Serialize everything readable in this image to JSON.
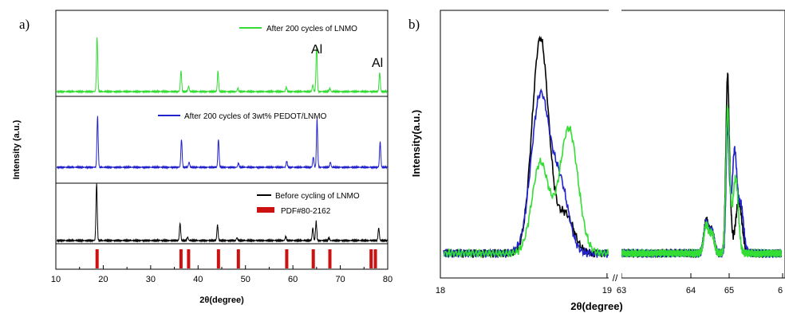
{
  "colors": {
    "lnmo": "#33dd33",
    "pedot": "#2222cc",
    "before": "#000000",
    "pdf": "#cc1111"
  },
  "chart_data": [
    {
      "type": "line",
      "panel_label": "a)",
      "xlabel": "2θ(degree)",
      "ylabel": "Intensity (a.u.)",
      "xlim": [
        10,
        80
      ],
      "xticks": [
        "10",
        "20",
        "30",
        "40",
        "50",
        "60",
        "70",
        "80"
      ],
      "series": [
        {
          "name": "After 200 cycles of LNMO",
          "color": "#33dd33",
          "peaks": [
            [
              18.7,
              1.0
            ],
            [
              36.4,
              0.38
            ],
            [
              38.0,
              0.1
            ],
            [
              44.2,
              0.38
            ],
            [
              48.4,
              0.06
            ],
            [
              58.6,
              0.08
            ],
            [
              64.2,
              0.12
            ],
            [
              65.0,
              0.85
            ],
            [
              67.8,
              0.06
            ],
            [
              78.3,
              0.35
            ]
          ]
        },
        {
          "name": "After 200 cycles of 3wt% PEDOT/LNMO",
          "color": "#2222cc",
          "peaks": [
            [
              18.8,
              1.0
            ],
            [
              36.5,
              0.55
            ],
            [
              38.1,
              0.1
            ],
            [
              44.3,
              0.55
            ],
            [
              48.5,
              0.08
            ],
            [
              58.7,
              0.12
            ],
            [
              64.3,
              0.2
            ],
            [
              65.1,
              0.95
            ],
            [
              67.9,
              0.1
            ],
            [
              78.4,
              0.5
            ]
          ]
        },
        {
          "name": "Before cycling of LNMO",
          "color": "#000000",
          "peaks": [
            [
              18.6,
              1.0
            ],
            [
              36.2,
              0.3
            ],
            [
              37.8,
              0.06
            ],
            [
              44.1,
              0.28
            ],
            [
              48.2,
              0.05
            ],
            [
              58.5,
              0.07
            ],
            [
              64.2,
              0.22
            ],
            [
              64.9,
              0.33
            ],
            [
              67.6,
              0.05
            ],
            [
              78.1,
              0.22
            ]
          ]
        }
      ],
      "reference": {
        "name": "PDF#80-2162",
        "color": "#cc1111",
        "positions": [
          18.7,
          36.4,
          38.0,
          44.3,
          48.5,
          58.7,
          64.3,
          67.8,
          76.5,
          77.4
        ]
      },
      "annotations": [
        "Al",
        "Al"
      ]
    },
    {
      "type": "line",
      "panel_label": "b)",
      "xlabel": "2θ(degree)",
      "ylabel": "Intensity(a.u.)",
      "xticks": [
        "18",
        "19",
        "63",
        "64",
        "65",
        "6"
      ],
      "axis_break": "//",
      "series": [
        {
          "name": "black",
          "color": "#000000",
          "peaks": [
            [
              18.6,
              1.0,
              0.05
            ],
            [
              18.75,
              0.18,
              0.05
            ],
            [
              64.4,
              0.15,
              0.06
            ],
            [
              64.55,
              0.1,
              0.06
            ],
            [
              64.96,
              0.83,
              0.045
            ],
            [
              65.18,
              0.24,
              0.06
            ]
          ]
        },
        {
          "name": "blue",
          "color": "#2222cc",
          "peaks": [
            [
              18.6,
              0.73,
              0.055
            ],
            [
              18.72,
              0.3,
              0.05
            ],
            [
              64.4,
              0.14,
              0.06
            ],
            [
              64.55,
              0.1,
              0.06
            ],
            [
              64.96,
              0.6,
              0.04
            ],
            [
              65.1,
              0.47,
              0.045
            ],
            [
              65.22,
              0.22,
              0.05
            ]
          ]
        },
        {
          "name": "green",
          "color": "#33dd33",
          "peaks": [
            [
              18.6,
              0.42,
              0.05
            ],
            [
              18.77,
              0.58,
              0.055
            ],
            [
              64.4,
              0.13,
              0.06
            ],
            [
              64.55,
              0.09,
              0.06
            ],
            [
              64.96,
              0.68,
              0.045
            ],
            [
              65.12,
              0.35,
              0.05
            ]
          ]
        }
      ]
    }
  ]
}
